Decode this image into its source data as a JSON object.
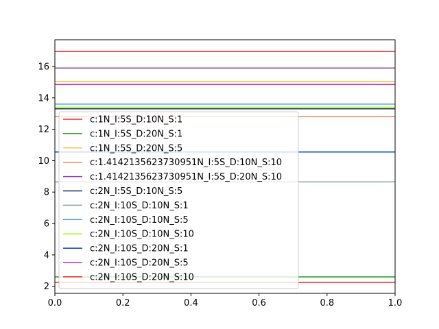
{
  "chart_data": {
    "type": "line",
    "title": "",
    "xlabel": "",
    "ylabel": "",
    "xlim": [
      0,
      1
    ],
    "ylim": [
      1.55,
      17.7
    ],
    "grid": false,
    "legend_placement": "lower-left",
    "x_ticks": [
      "0.0",
      "0.2",
      "0.4",
      "0.6",
      "0.8",
      "1.0"
    ],
    "y_ticks": [
      "2",
      "4",
      "6",
      "8",
      "10",
      "12",
      "14",
      "16"
    ],
    "series": [
      {
        "name": "c:1N_I:5S_D:10N_S:1",
        "color": "#ff2020",
        "x": [
          0,
          1
        ],
        "y": [
          16.95,
          16.95
        ]
      },
      {
        "name": "c:1N_I:5S_D:20N_S:1",
        "color": "#1a9a1a",
        "x": [
          0,
          1
        ],
        "y": [
          2.6,
          2.6
        ]
      },
      {
        "name": "c:1N_I:5S_D:20N_S:5",
        "color": "#ffc040",
        "x": [
          0,
          1
        ],
        "y": [
          15.05,
          15.05
        ]
      },
      {
        "name": "c:1.4142135623730951N_I:5S_D:10N_S:10",
        "color": "#ff7f50",
        "x": [
          0,
          1
        ],
        "y": [
          12.8,
          12.8
        ]
      },
      {
        "name": "c:1.4142135623730951N_I:5S_D:20N_S:10",
        "color": "#8e44ad",
        "x": [
          0,
          1
        ],
        "y": [
          15.9,
          15.9
        ]
      },
      {
        "name": "c:2N_I:5S_D:10N_S:5",
        "color": "#1f2f5f",
        "x": [
          0,
          1
        ],
        "y": [
          13.3,
          13.3
        ]
      },
      {
        "name": "c:2N_I:10S_D:10N_S:1",
        "color": "#8aa0a0",
        "x": [
          0,
          1
        ],
        "y": [
          8.65,
          8.65
        ]
      },
      {
        "name": "c:2N_I:10S_D:10N_S:5",
        "color": "#4aa8d8",
        "x": [
          0,
          1
        ],
        "y": [
          13.6,
          13.6
        ]
      },
      {
        "name": "c:2N_I:10S_D:10N_S:10",
        "color": "#9aff00",
        "x": [
          0,
          1
        ],
        "y": [
          13.4,
          13.4
        ]
      },
      {
        "name": "c:2N_I:10S_D:20N_S:1",
        "color": "#0040e0",
        "x": [
          0,
          1
        ],
        "y": [
          10.55,
          10.55
        ]
      },
      {
        "name": "c:2N_I:10S_D:20N_S:5",
        "color": "#e020a0",
        "x": [
          0,
          1
        ],
        "y": [
          14.85,
          14.85
        ]
      },
      {
        "name": "c:2N_I:10S_D:20N_S:10",
        "color": "#ff2020",
        "x": [
          0,
          1
        ],
        "y": [
          2.25,
          2.25
        ]
      }
    ]
  }
}
